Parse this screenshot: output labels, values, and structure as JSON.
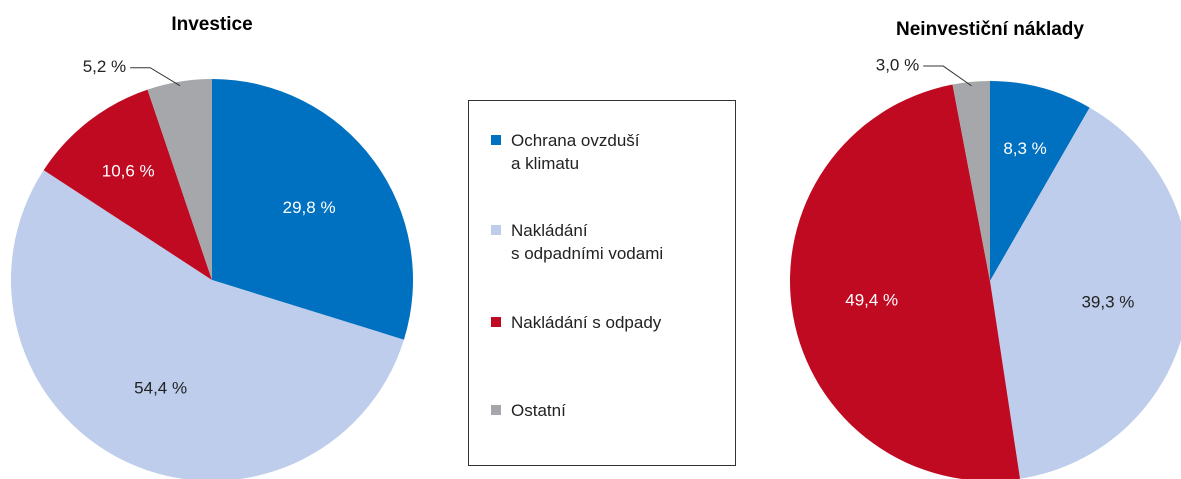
{
  "chart_data": [
    {
      "type": "pie",
      "title": "Investice",
      "values": [
        29.8,
        54.4,
        10.6,
        5.2
      ],
      "value_labels": [
        "29,8 %",
        "54,4 %",
        "10,6 %",
        "5,2 %"
      ]
    },
    {
      "type": "pie",
      "title": "Neinvestiční náklady",
      "values": [
        8.3,
        39.3,
        49.4,
        3.0
      ],
      "value_labels": [
        "8,3 %",
        "39,3 %",
        "49,4 %",
        "3,0 %"
      ]
    }
  ],
  "legend": {
    "labels": [
      "Ochrana ovzduší\na klimatu",
      "Nakládání\ns odpadními vodami",
      "Nakládání s odpady",
      "Ostatní"
    ],
    "colors": [
      "#0070c0",
      "#bdcdeb",
      "#c00a22",
      "#a5a7aa"
    ]
  }
}
